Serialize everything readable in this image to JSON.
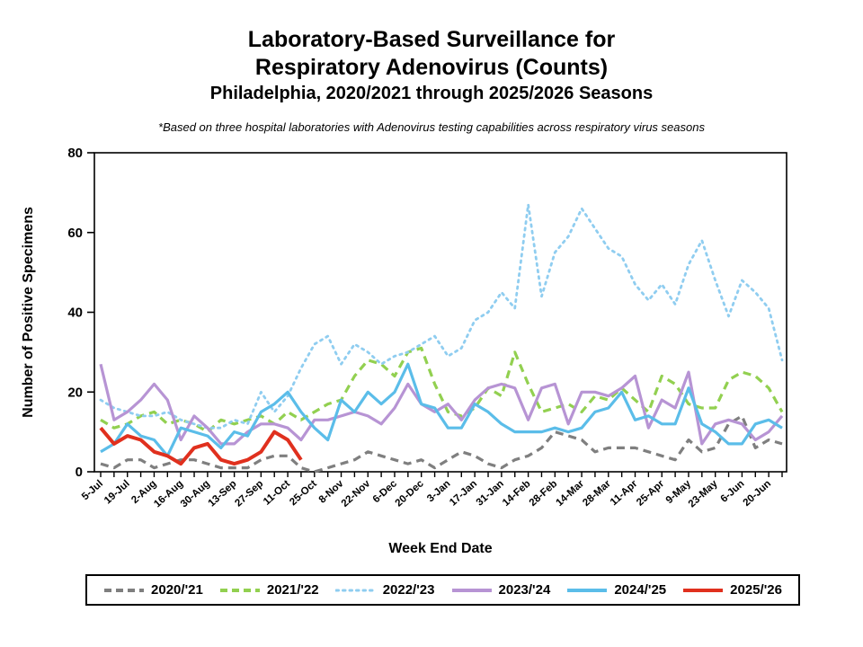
{
  "title": {
    "line1": "Laboratory-Based Surveillance for",
    "line2": "Respiratory Adenovirus (Counts)",
    "line3": "Philadelphia, 2020/2021 through 2025/2026 Seasons"
  },
  "footnote": "*Based on three hospital laboratories with Adenovirus testing capabilities across respiratory virus seasons",
  "axes": {
    "y_title": "Number of Positive Specimens",
    "x_title": "Week End Date",
    "y_ticks": [
      0,
      20,
      40,
      60,
      80
    ],
    "ylim": [
      0,
      80
    ]
  },
  "chart_data": {
    "type": "line",
    "weeks": 52,
    "label_every_n_weeks": 2,
    "x_tick_labels": [
      "5-Jul",
      "19-Jul",
      "2-Aug",
      "16-Aug",
      "30-Aug",
      "13-Sep",
      "27-Sep",
      "11-Oct",
      "25-Oct",
      "8-Nov",
      "22-Nov",
      "6-Dec",
      "20-Dec",
      "3-Jan",
      "17-Jan",
      "31-Jan",
      "14-Feb",
      "28-Feb",
      "14-Mar",
      "28-Mar",
      "11-Apr",
      "25-Apr",
      "9-May",
      "23-May",
      "6-Jun",
      "20-Jun"
    ],
    "xlabel": "Week End Date",
    "ylabel": "Number of Positive Specimens",
    "ylim": [
      0,
      80
    ],
    "grid": false,
    "legend_position": "bottom",
    "series": [
      {
        "name": "2020/'21",
        "color": "#7f7f7f",
        "style": "dashed",
        "values": [
          2,
          1,
          3,
          3,
          1,
          2,
          3,
          3,
          2,
          1,
          1,
          1,
          3,
          4,
          4,
          1,
          0,
          1,
          2,
          3,
          5,
          4,
          3,
          2,
          3,
          1,
          3,
          5,
          4,
          2,
          1,
          3,
          4,
          6,
          10,
          9,
          8,
          5,
          6,
          6,
          6,
          5,
          4,
          3,
          8,
          5,
          6,
          12,
          14,
          6,
          8,
          7
        ]
      },
      {
        "name": "2021/'22",
        "color": "#92d050",
        "style": "dashed",
        "values": [
          13,
          11,
          12,
          14,
          15,
          12,
          13,
          12,
          10,
          13,
          12,
          13,
          14,
          12,
          15,
          13,
          15,
          17,
          18,
          24,
          28,
          27,
          24,
          30,
          31,
          22,
          15,
          14,
          16,
          21,
          19,
          30,
          22,
          15,
          16,
          17,
          15,
          19,
          18,
          21,
          18,
          15,
          24,
          22,
          17,
          16,
          16,
          23,
          25,
          24,
          21,
          15
        ]
      },
      {
        "name": "2022/'23",
        "color": "#8fcdf0",
        "style": "dotted",
        "values": [
          18,
          16,
          15,
          14,
          14,
          15,
          13,
          12,
          11,
          11,
          13,
          12,
          20,
          15,
          19,
          26,
          32,
          34,
          27,
          32,
          30,
          27,
          29,
          30,
          32,
          34,
          29,
          31,
          38,
          40,
          45,
          41,
          67,
          44,
          55,
          59,
          66,
          61,
          56,
          54,
          47,
          43,
          47,
          42,
          52,
          58,
          48,
          39,
          48,
          45,
          41,
          28
        ]
      },
      {
        "name": "2023/'24",
        "color": "#b794d4",
        "style": "solid",
        "values": [
          27,
          13,
          15,
          18,
          22,
          18,
          8,
          14,
          11,
          7,
          7,
          10,
          12,
          12,
          11,
          8,
          13,
          13,
          14,
          15,
          14,
          12,
          16,
          22,
          17,
          15,
          17,
          13,
          18,
          21,
          22,
          21,
          13,
          21,
          22,
          12,
          20,
          20,
          19,
          21,
          24,
          11,
          18,
          16,
          25,
          7,
          12,
          13,
          12,
          8,
          10,
          14
        ]
      },
      {
        "name": "2024/'25",
        "color": "#5bbde9",
        "style": "solid",
        "values": [
          5,
          7,
          12,
          9,
          8,
          4,
          11,
          10,
          9,
          6,
          10,
          9,
          15,
          17,
          20,
          15,
          11,
          8,
          18,
          15,
          20,
          17,
          20,
          27,
          17,
          16,
          11,
          11,
          17,
          15,
          12,
          10,
          10,
          10,
          11,
          10,
          11,
          15,
          16,
          20,
          13,
          14,
          12,
          12,
          21,
          12,
          10,
          7,
          7,
          12,
          13,
          11
        ]
      },
      {
        "name": "2025/'26",
        "color": "#e0301e",
        "style": "solid",
        "values": [
          11,
          7,
          9,
          8,
          5,
          4,
          2,
          6,
          7,
          3,
          2,
          3,
          5,
          10,
          8,
          3
        ]
      }
    ]
  }
}
